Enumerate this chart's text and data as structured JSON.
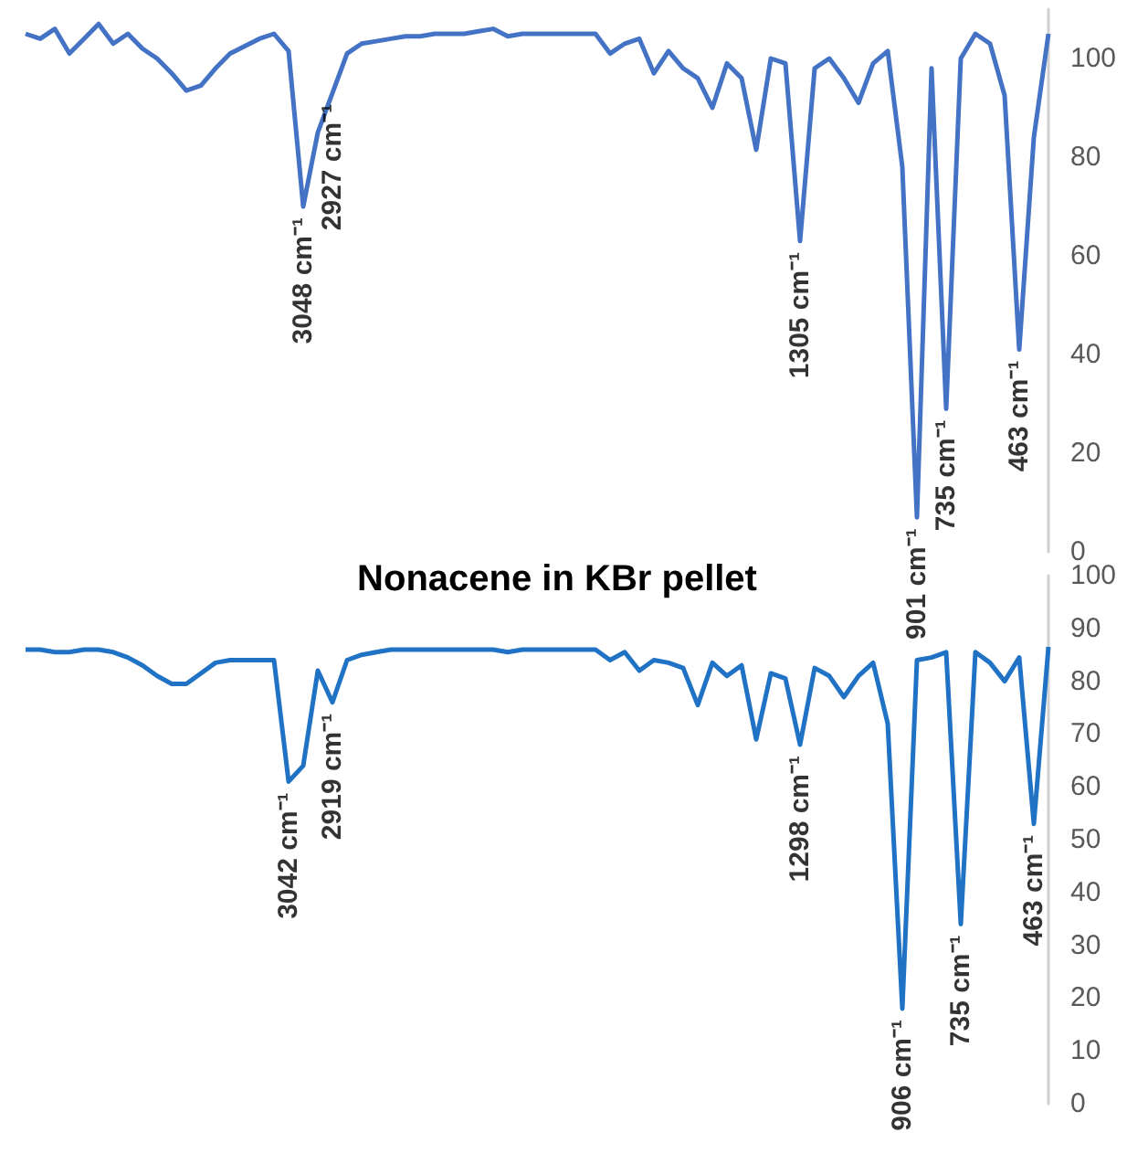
{
  "chart_data": [
    {
      "type": "line",
      "tick_labels": "y",
      "grid": false,
      "ylim": [
        0,
        110
      ],
      "yticks": [
        0,
        20,
        40,
        60,
        80,
        100
      ],
      "categories": [
        null,
        null,
        null,
        null,
        null,
        null,
        null,
        null,
        null,
        null,
        null,
        null,
        null,
        null,
        null,
        null,
        null,
        null,
        null,
        null,
        null,
        null,
        null,
        null,
        null,
        null,
        null,
        null,
        null,
        null,
        null,
        null,
        null,
        null,
        null,
        null,
        null,
        null,
        null,
        null,
        null,
        null,
        null,
        null,
        null,
        null,
        null,
        null,
        null,
        null,
        null,
        null,
        null,
        null,
        null,
        null,
        null,
        null,
        null,
        null,
        null,
        null,
        null,
        null,
        null,
        null,
        null,
        null,
        null,
        null,
        null
      ],
      "series": [
        {
          "color": "#4472c4",
          "values": [
            105,
            104,
            106,
            101,
            104,
            107,
            103,
            105,
            102,
            100,
            97,
            93.5,
            94.5,
            98,
            101,
            102.5,
            104,
            105,
            101.5,
            70,
            85,
            93,
            101,
            103,
            103.5,
            104,
            104.5,
            104.5,
            105,
            105,
            105,
            105.5,
            106,
            104.5,
            105,
            105,
            105,
            105,
            105,
            105,
            101,
            103,
            104,
            97,
            101.5,
            98,
            96,
            90,
            99,
            96,
            81.5,
            100,
            99,
            63,
            98,
            100,
            96,
            91,
            99,
            101.5,
            78,
            7,
            98,
            29,
            100,
            105,
            103,
            92.5,
            41,
            84,
            105
          ]
        }
      ],
      "annotations": [
        {
          "text": "3048 cm⁻¹",
          "y": 70
        },
        {
          "text": "2927 cm⁻¹",
          "y": 93
        },
        {
          "text": "1305 cm⁻¹",
          "y": 63
        },
        {
          "text": "901 cm⁻¹",
          "y": 7
        },
        {
          "text": "735 cm⁻¹",
          "y": 29
        },
        {
          "text": "463 cm⁻¹",
          "y": 41
        }
      ]
    },
    {
      "type": "line",
      "title": "Nonacene in KBr pellet",
      "tick_labels": "y",
      "grid": false,
      "ylim": [
        0,
        100
      ],
      "yticks": [
        0,
        10,
        20,
        30,
        40,
        50,
        60,
        70,
        80,
        90,
        100
      ],
      "categories": [
        null,
        null,
        null,
        null,
        null,
        null,
        null,
        null,
        null,
        null,
        null,
        null,
        null,
        null,
        null,
        null,
        null,
        null,
        null,
        null,
        null,
        null,
        null,
        null,
        null,
        null,
        null,
        null,
        null,
        null,
        null,
        null,
        null,
        null,
        null,
        null,
        null,
        null,
        null,
        null,
        null,
        null,
        null,
        null,
        null,
        null,
        null,
        null,
        null,
        null,
        null,
        null,
        null,
        null,
        null,
        null,
        null,
        null,
        null,
        null,
        null,
        null,
        null,
        null,
        null,
        null,
        null,
        null,
        null,
        null,
        null
      ],
      "series": [
        {
          "color": "#1f72c4",
          "values": [
            86,
            86,
            85.5,
            85.5,
            86,
            86,
            85.5,
            84.5,
            83,
            81,
            79.5,
            79.5,
            81.5,
            83.5,
            84,
            84,
            84,
            84,
            61,
            64,
            82,
            76,
            84,
            85,
            85.5,
            86,
            86,
            86,
            86,
            86,
            86,
            86,
            86,
            85.5,
            86,
            86,
            86,
            86,
            86,
            86,
            84,
            85.5,
            82,
            84,
            83.5,
            82.5,
            75.5,
            83.5,
            81,
            83,
            69,
            81.5,
            80.5,
            68,
            82.5,
            81,
            77,
            81,
            83.5,
            72,
            18,
            84,
            84.5,
            85.5,
            34,
            85.5,
            83.5,
            80,
            84.5,
            53,
            86.5
          ]
        }
      ],
      "annotations": [
        {
          "text": "3042 cm⁻¹",
          "y": 61
        },
        {
          "text": "2919 cm⁻¹",
          "y": 76
        },
        {
          "text": "1298 cm⁻¹",
          "y": 68
        },
        {
          "text": "906 cm⁻¹",
          "y": 18
        },
        {
          "text": "735 cm⁻¹",
          "y": 34
        },
        {
          "text": "463 cm⁻¹",
          "y": 53
        }
      ]
    }
  ]
}
